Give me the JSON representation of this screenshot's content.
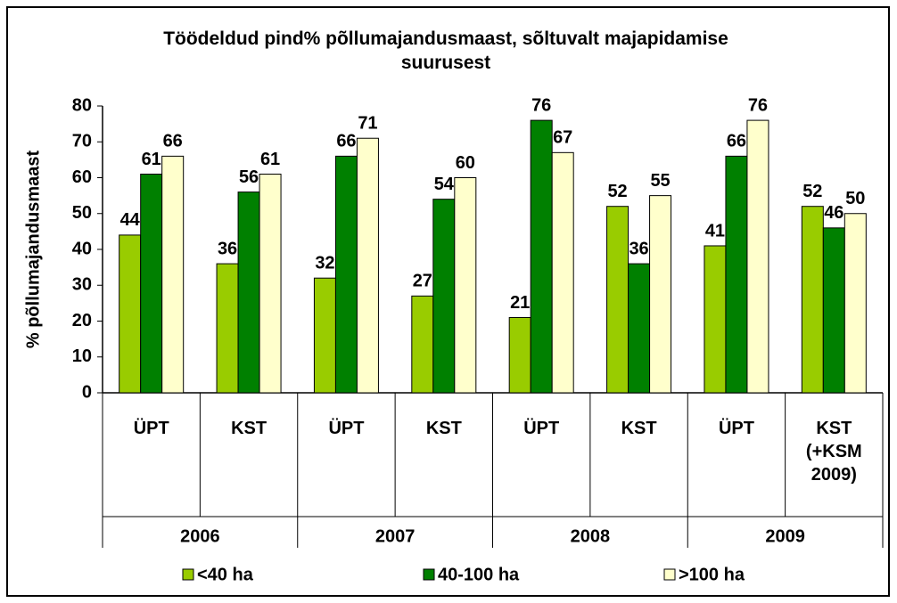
{
  "chart_data": {
    "type": "bar",
    "title": "Töödeldud pind% põllumajandusmaast, sõltuvalt majapidamise suurusest",
    "y_label": "% põllumajandusmaast",
    "categories": [
      "ÜPT",
      "KST",
      "ÜPT",
      "KST",
      "ÜPT",
      "KST",
      "ÜPT",
      "KST (+KSM 2009)"
    ],
    "years": [
      "2006",
      "2007",
      "2008",
      "2009"
    ],
    "series": [
      {
        "name": "<40 ha",
        "color": "#99cc00",
        "values": [
          44,
          36,
          32,
          27,
          21,
          52,
          41,
          52
        ]
      },
      {
        "name": "40-100 ha",
        "color": "#008000",
        "values": [
          61,
          56,
          66,
          54,
          76,
          36,
          66,
          46
        ]
      },
      {
        "name": ">100 ha",
        "color": "#ffffcc",
        "values": [
          66,
          61,
          71,
          60,
          67,
          55,
          76,
          50
        ]
      }
    ],
    "ylim": [
      0,
      80
    ],
    "yticks": [
      0,
      10,
      20,
      30,
      40,
      50,
      60,
      70,
      80
    ],
    "legend": "bottom"
  }
}
